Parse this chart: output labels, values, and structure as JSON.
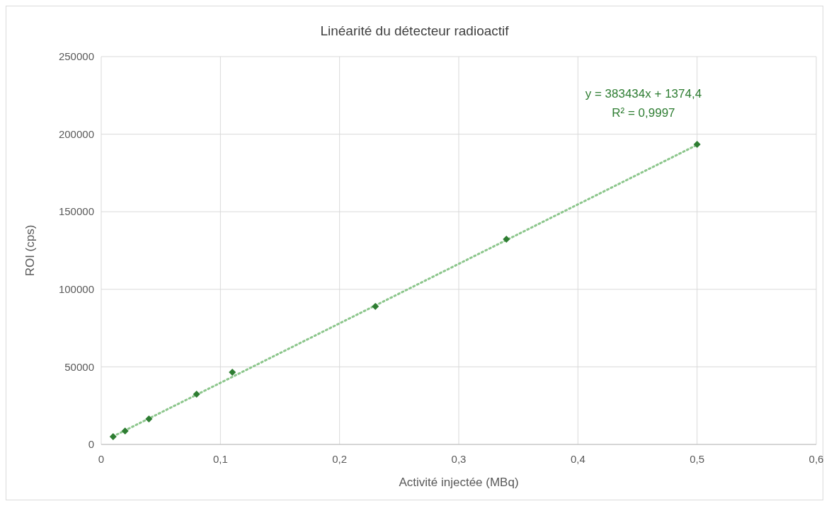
{
  "chart_data": {
    "type": "scatter",
    "title": "Linéarité du détecteur radioactif",
    "xlabel": "Activité injectée (MBq)",
    "ylabel": "ROI (cps)",
    "x": [
      0.01,
      0.02,
      0.04,
      0.08,
      0.11,
      0.23,
      0.34,
      0.5
    ],
    "series": [
      {
        "color": "#2e7d32",
        "marker": "diamond",
        "values": [
          5000,
          8700,
          16400,
          32400,
          46500,
          89000,
          132300,
          193400
        ]
      },
      {
        "type": "line",
        "color": "#8cc68c",
        "x": [
          0.01,
          0.5
        ],
        "values": [
          5200,
          193100
        ]
      }
    ],
    "xlim": [
      0,
      0.6
    ],
    "xticks": [
      0,
      {
        "value": 0.1,
        "label": "0,1"
      },
      {
        "value": 0.2,
        "label": "0,2"
      },
      {
        "value": 0.3,
        "label": "0,3"
      },
      {
        "value": 0.4,
        "label": "0,4"
      },
      {
        "value": 0.5,
        "label": "0,5"
      },
      {
        "value": 0.6,
        "label": "0,6"
      }
    ],
    "ylim": [
      0,
      250000
    ],
    "yticks": [
      0,
      50000,
      100000,
      150000,
      200000,
      250000
    ],
    "grid": true,
    "line_style": "dotted",
    "annotations": [
      "y = 383434x + 1374,4",
      "R² = 0,9997"
    ]
  }
}
